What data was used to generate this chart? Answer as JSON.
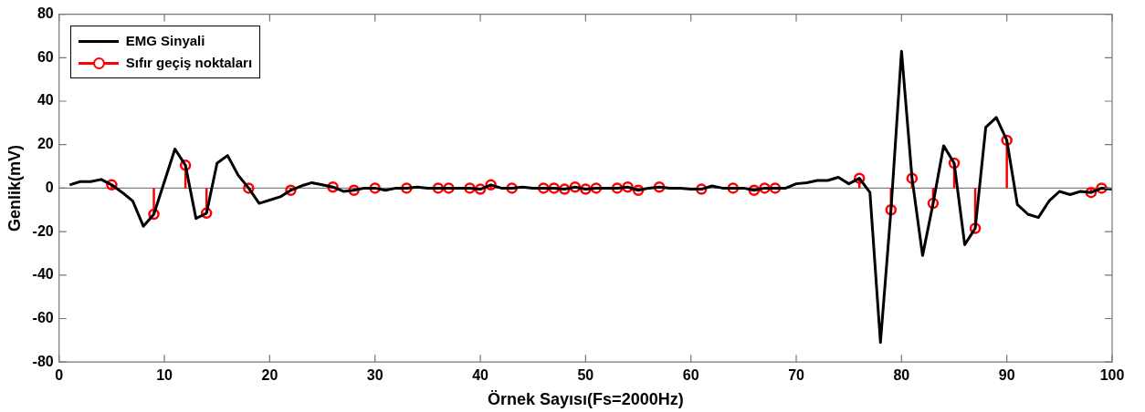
{
  "chart_data": {
    "type": "line",
    "xlabel": "Örnek Sayısı(Fs=2000Hz)",
    "ylabel": "Genlik(mV)",
    "xlim": [
      0,
      100
    ],
    "xticks": [
      0,
      10,
      20,
      30,
      40,
      50,
      60,
      70,
      80,
      90,
      100
    ],
    "ylim": [
      -80,
      80
    ],
    "yticks": [
      -80,
      -60,
      -40,
      -20,
      0,
      20,
      40,
      60,
      80
    ],
    "grid": false,
    "legend": "top left",
    "ref_lines": [
      {
        "axis": "y",
        "value": 0,
        "color": "#808080"
      }
    ],
    "series": [
      {
        "name": "EMG Sinyali",
        "color": "#000000",
        "marker": "none",
        "x": [
          1,
          2,
          3,
          4,
          5,
          6,
          7,
          8,
          9,
          10,
          11,
          12,
          13,
          14,
          15,
          16,
          17,
          18,
          19,
          20,
          21,
          22,
          23,
          24,
          25,
          26,
          27,
          28,
          29,
          30,
          31,
          32,
          33,
          34,
          35,
          36,
          37,
          38,
          39,
          40,
          41,
          42,
          43,
          44,
          45,
          46,
          47,
          48,
          49,
          50,
          51,
          52,
          53,
          54,
          55,
          56,
          57,
          58,
          59,
          60,
          61,
          62,
          63,
          64,
          65,
          66,
          67,
          68,
          69,
          70,
          71,
          72,
          73,
          74,
          75,
          76,
          77,
          78,
          79,
          80,
          81,
          82,
          83,
          84,
          85,
          86,
          87,
          88,
          89,
          90,
          91,
          92,
          93,
          94,
          95,
          96,
          97,
          98,
          99,
          100
        ],
        "values": [
          1.5,
          3,
          3,
          4,
          1.5,
          -2,
          -6,
          -17.5,
          -12,
          3,
          18,
          10.5,
          -14,
          -11.5,
          11.5,
          15,
          6,
          0,
          -7,
          -5.5,
          -4,
          -1,
          1,
          2.5,
          1.5,
          0.5,
          -1.5,
          -1,
          0,
          0,
          -1,
          0,
          0,
          0.5,
          0,
          0,
          0,
          0,
          0,
          -0.5,
          1.5,
          0,
          0,
          0.5,
          0,
          0,
          0,
          -0.5,
          0.5,
          -0.5,
          0,
          0,
          0,
          0.5,
          -1,
          0,
          0.5,
          0,
          0,
          -0.5,
          -0.5,
          1,
          0,
          0,
          0,
          -1,
          0,
          0,
          0,
          2,
          2.5,
          3.5,
          3.5,
          5,
          2,
          4.5,
          -2,
          -71,
          -10,
          63,
          4.5,
          -31,
          -7,
          19.5,
          11.5,
          -26,
          -18.5,
          28,
          32.5,
          22,
          -7.5,
          -12,
          -13.5,
          -6,
          -1.5,
          -3,
          -1.5,
          -2,
          0,
          -0.5
        ]
      },
      {
        "name": "Sıfır geçiş noktaları",
        "type": "lollipop",
        "color": "#ff0000",
        "marker": "circle",
        "x": [
          5,
          9,
          12,
          14,
          18,
          22,
          26,
          28,
          30,
          33,
          36,
          37,
          39,
          40,
          41,
          43,
          46,
          47,
          48,
          49,
          50,
          51,
          53,
          54,
          55,
          57,
          61,
          64,
          66,
          67,
          68,
          76,
          79,
          81,
          83,
          85,
          87,
          90,
          98,
          99
        ],
        "values": [
          1.5,
          -12,
          10.5,
          -11.5,
          0,
          -1,
          0.5,
          -1,
          0,
          0,
          0,
          0,
          0,
          -0.5,
          1.5,
          0,
          0,
          0,
          -0.5,
          0.5,
          -0.5,
          0,
          0,
          0.5,
          -1,
          0.5,
          -0.5,
          0,
          -1,
          0,
          0,
          4.5,
          -10,
          4.5,
          -7,
          11.5,
          -18.5,
          22,
          -2,
          0
        ]
      }
    ]
  }
}
